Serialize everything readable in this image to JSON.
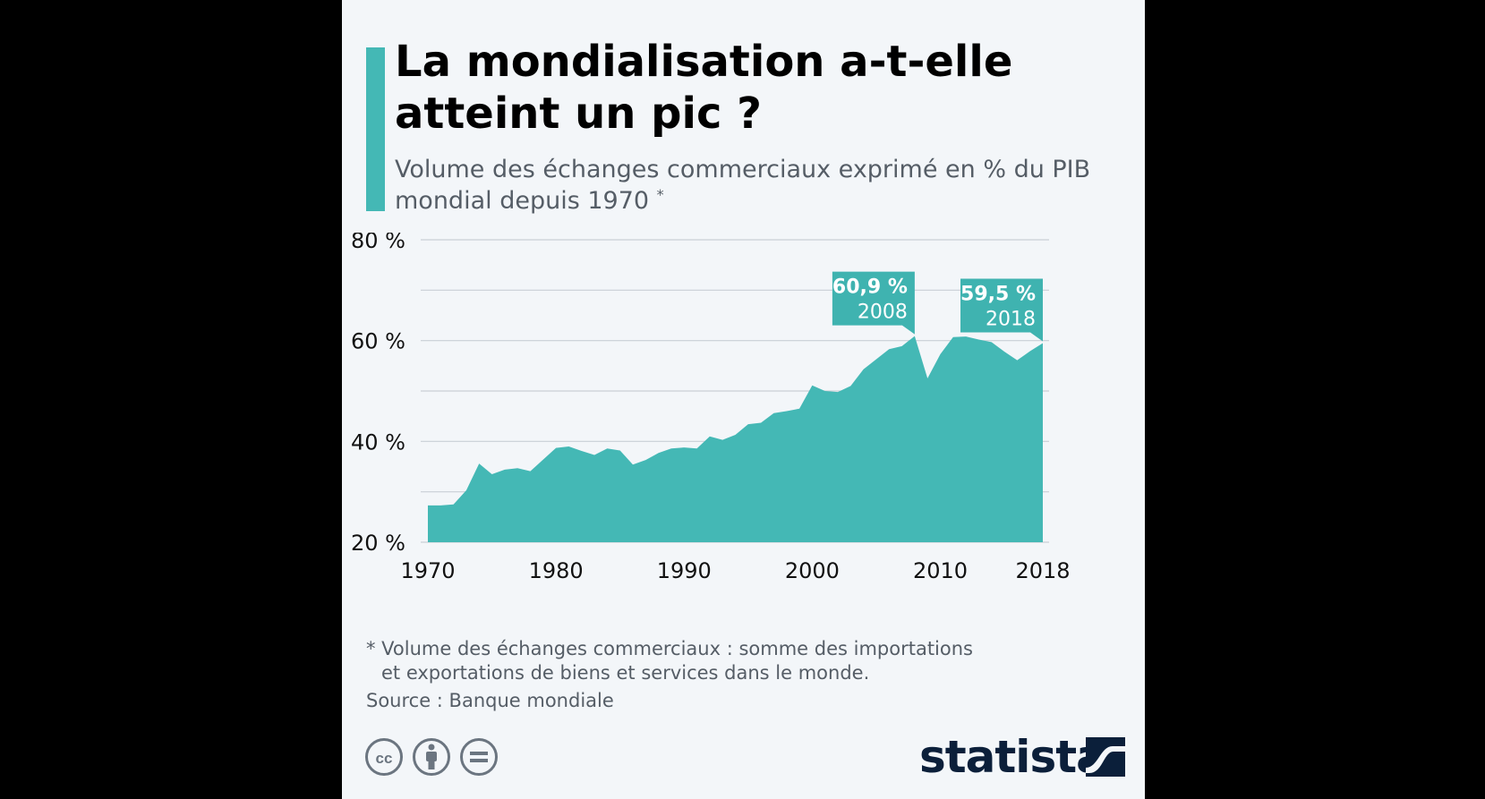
{
  "title": "La mondialisation a-t-elle atteint un pic ?",
  "subtitle": "Volume des échanges commerciaux exprimé en % du PIB mondial depuis 1970",
  "subtitle_marker": "*",
  "footnote": {
    "line1": "* Volume des échanges commerciaux : somme des importations",
    "line2": "et exportations de biens et services dans le monde."
  },
  "source": "Source : Banque mondiale",
  "brand": "statista",
  "license_icons": [
    "creative-commons-icon",
    "attribution-person-icon",
    "no-derivatives-icon"
  ],
  "colors": {
    "accent": "#44b8b5",
    "area": "#44b8b5",
    "callout": "#3fb3b0",
    "text": "#000000",
    "muted": "#555d66",
    "brand": "#0b1f3a"
  },
  "chart_data": {
    "type": "area",
    "title": "La mondialisation a-t-elle atteint un pic ?",
    "xlabel": "",
    "ylabel": "",
    "x": [
      1970,
      1971,
      1972,
      1973,
      1974,
      1975,
      1976,
      1977,
      1978,
      1979,
      1980,
      1981,
      1982,
      1983,
      1984,
      1985,
      1986,
      1987,
      1988,
      1989,
      1990,
      1991,
      1992,
      1993,
      1994,
      1995,
      1996,
      1997,
      1998,
      1999,
      2000,
      2001,
      2002,
      2003,
      2004,
      2005,
      2006,
      2007,
      2008,
      2009,
      2010,
      2011,
      2012,
      2013,
      2014,
      2015,
      2016,
      2017,
      2018
    ],
    "values": [
      27.3,
      27.3,
      27.5,
      30.3,
      35.6,
      33.5,
      34.4,
      34.7,
      34.1,
      36.4,
      38.7,
      39.0,
      38.1,
      37.3,
      38.6,
      38.2,
      35.4,
      36.3,
      37.7,
      38.6,
      38.8,
      38.6,
      41.0,
      40.3,
      41.3,
      43.4,
      43.7,
      45.6,
      46.0,
      46.5,
      51.1,
      50.0,
      49.8,
      51.0,
      54.3,
      56.3,
      58.3,
      58.9,
      60.9,
      52.5,
      57.3,
      60.7,
      60.8,
      60.2,
      59.7,
      57.8,
      56.1,
      57.9,
      59.5
    ],
    "ylim": [
      20,
      80
    ],
    "yticks": [
      20,
      40,
      60,
      80
    ],
    "ytick_labels": [
      "20 %",
      "40 %",
      "60 %",
      "80 %"
    ],
    "ygrid_minor": [
      30,
      50,
      70
    ],
    "xticks": [
      1970,
      1980,
      1990,
      2000,
      2010,
      2018
    ],
    "xtick_labels": [
      "1970",
      "1980",
      "1990",
      "2000",
      "2010",
      "2018"
    ],
    "grid": true,
    "legend": "none",
    "annotations": [
      {
        "x": 2008,
        "y": 60.9,
        "value": "60,9 %",
        "year": "2008"
      },
      {
        "x": 2018,
        "y": 59.5,
        "value": "59,5 %",
        "year": "2018"
      }
    ]
  }
}
